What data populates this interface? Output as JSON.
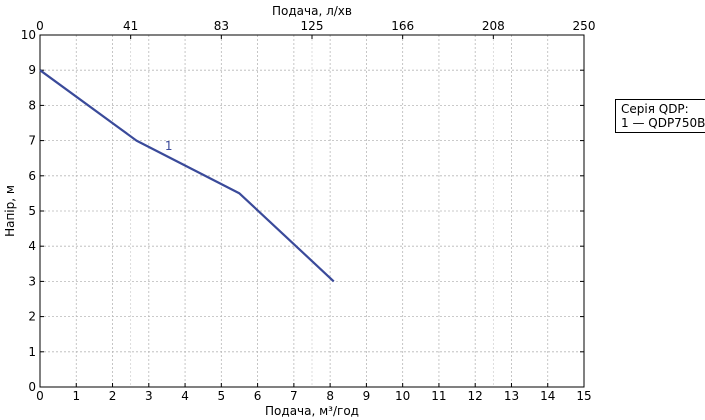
{
  "chart_data": {
    "type": "line",
    "xlabel": "Подача, м³/год",
    "ylabel": "Напір, м",
    "x2label": "Подача, л/хв",
    "xlim": [
      0,
      15
    ],
    "ylim": [
      0,
      10
    ],
    "x_ticks": [
      "0",
      "1",
      "2",
      "3",
      "4",
      "5",
      "6",
      "7",
      "8",
      "9",
      "10",
      "11",
      "12",
      "13",
      "14",
      "15"
    ],
    "y_ticks": [
      "0",
      "1",
      "2",
      "3",
      "4",
      "5",
      "6",
      "7",
      "8",
      "9",
      "10"
    ],
    "x2_ticks": [
      "0",
      "41",
      "83",
      "125",
      "166",
      "208",
      "250"
    ],
    "x2_tick_positions": [
      0,
      2.5,
      5,
      7.5,
      10,
      12.5,
      15
    ],
    "grid": true,
    "legend_position": "right",
    "legend_title": "Серія QDP:",
    "legend_entries": [
      "1 — QDP750B"
    ],
    "series": [
      {
        "label": "1",
        "label_at": [
          3.55,
          6.85
        ],
        "color": "#3a4a9a",
        "x": [
          0,
          2.66,
          5.5,
          8.1
        ],
        "y": [
          9,
          7,
          5.5,
          3
        ]
      }
    ]
  }
}
